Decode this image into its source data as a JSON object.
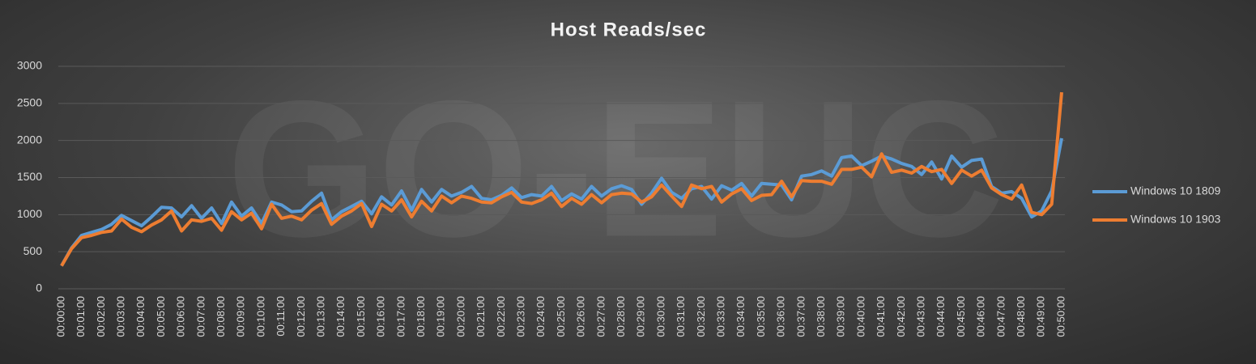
{
  "chart_data": {
    "type": "line",
    "title": "Host Reads/sec",
    "watermark": "GO-EUC",
    "categories": [
      "00:00:00",
      null,
      "00:01:00",
      null,
      "00:02:00",
      null,
      "00:03:00",
      null,
      "00:04:00",
      null,
      "00:05:00",
      null,
      "00:06:00",
      null,
      "00:07:00",
      null,
      "00:08:00",
      null,
      "00:09:00",
      null,
      "00:10:00",
      null,
      "00:11:00",
      null,
      "00:12:00",
      null,
      "00:13:00",
      null,
      "00:14:00",
      null,
      "00:15:00",
      null,
      "00:16:00",
      null,
      "00:17:00",
      null,
      "00:18:00",
      null,
      "00:19:00",
      null,
      "00:20:00",
      null,
      "00:21:00",
      null,
      "00:22:00",
      null,
      "00:23:00",
      null,
      "00:24:00",
      null,
      "00:25:00",
      null,
      "00:26:00",
      null,
      "00:27:00",
      null,
      "00:28:00",
      null,
      "00:29:00",
      null,
      "00:30:00",
      null,
      "00:31:00",
      null,
      "00:32:00",
      null,
      "00:33:00",
      null,
      "00:34:00",
      null,
      "00:35:00",
      null,
      "00:36:00",
      null,
      "00:37:00",
      null,
      "00:38:00",
      null,
      "00:39:00",
      null,
      "00:40:00",
      null,
      "00:41:00",
      null,
      "00:42:00",
      null,
      "00:43:00",
      null,
      "00:44:00",
      null,
      "00:45:00",
      null,
      "00:46:00",
      null,
      "00:47:00",
      null,
      "00:48:00",
      null,
      "00:49:00",
      null,
      "00:50:00"
    ],
    "series": [
      {
        "name": "Windows 10 1809",
        "color": "#5b9bd5",
        "values": [
          310,
          550,
          720,
          760,
          800,
          870,
          990,
          920,
          850,
          970,
          1100,
          1090,
          970,
          1120,
          950,
          1090,
          880,
          1170,
          980,
          1090,
          880,
          1170,
          1130,
          1040,
          1050,
          1180,
          1290,
          930,
          1040,
          1110,
          1180,
          1010,
          1240,
          1130,
          1320,
          1060,
          1340,
          1170,
          1340,
          1250,
          1300,
          1380,
          1220,
          1200,
          1260,
          1360,
          1230,
          1270,
          1250,
          1380,
          1190,
          1280,
          1210,
          1380,
          1250,
          1350,
          1390,
          1340,
          1140,
          1290,
          1490,
          1300,
          1220,
          1350,
          1380,
          1210,
          1390,
          1330,
          1420,
          1250,
          1420,
          1410,
          1400,
          1200,
          1520,
          1540,
          1590,
          1520,
          1770,
          1790,
          1660,
          1720,
          1790,
          1750,
          1690,
          1650,
          1540,
          1710,
          1480,
          1790,
          1640,
          1730,
          1750,
          1380,
          1290,
          1310,
          1220,
          970,
          1050,
          1320,
          2030
        ]
      },
      {
        "name": "Windows 10 1903",
        "color": "#ed7d31",
        "values": [
          310,
          540,
          690,
          720,
          760,
          780,
          940,
          830,
          770,
          860,
          930,
          1050,
          780,
          930,
          910,
          950,
          790,
          1040,
          930,
          1020,
          810,
          1140,
          950,
          980,
          930,
          1060,
          1150,
          870,
          980,
          1050,
          1150,
          840,
          1140,
          1050,
          1200,
          970,
          1180,
          1050,
          1250,
          1160,
          1250,
          1220,
          1170,
          1160,
          1240,
          1300,
          1170,
          1150,
          1200,
          1290,
          1110,
          1220,
          1140,
          1270,
          1160,
          1270,
          1290,
          1280,
          1170,
          1240,
          1400,
          1250,
          1110,
          1400,
          1350,
          1380,
          1170,
          1280,
          1350,
          1190,
          1260,
          1270,
          1450,
          1240,
          1460,
          1450,
          1450,
          1410,
          1610,
          1610,
          1640,
          1510,
          1820,
          1570,
          1600,
          1560,
          1650,
          1580,
          1610,
          1420,
          1600,
          1520,
          1600,
          1360,
          1270,
          1210,
          1400,
          1030,
          1000,
          1140,
          2650
        ]
      }
    ],
    "ylim": [
      0,
      3000
    ],
    "yticks": [
      0,
      500,
      1000,
      1500,
      2000,
      2500,
      3000
    ],
    "grid": true,
    "legend": "right"
  }
}
